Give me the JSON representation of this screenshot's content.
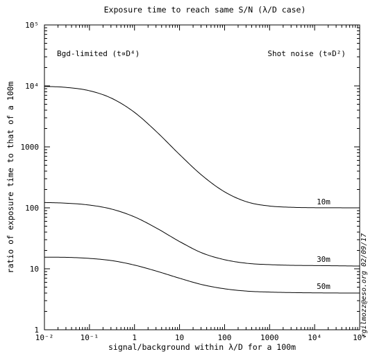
{
  "chart_data": {
    "type": "line",
    "title": "Exposure time to reach same S/N (λ/D case)",
    "xlabel": "signal/background within λ/D for a 100m",
    "ylabel": "ratio of exposure time to that of a 100m",
    "xscale": "log",
    "yscale": "log",
    "xlim": [
      0.01,
      100000
    ],
    "ylim": [
      1,
      100000
    ],
    "x_ticks": [
      0.01,
      0.1,
      1,
      10,
      100,
      1000,
      10000,
      100000
    ],
    "x_tick_labels": [
      "10⁻²",
      "10⁻¹",
      "1",
      "10",
      "100",
      "1000",
      "10⁴",
      "10⁵"
    ],
    "y_ticks": [
      1,
      10,
      100,
      1000,
      10000,
      100000
    ],
    "y_tick_labels": [
      "1",
      "10",
      "100",
      "1000",
      "10⁴",
      "10⁵"
    ],
    "grid": false,
    "x": [
      0.01,
      0.0316,
      0.1,
      0.316,
      1,
      3.16,
      10,
      31.6,
      100,
      316,
      1000,
      3160,
      10000,
      31600,
      100000
    ],
    "series": [
      {
        "name": "10m",
        "values": [
          9810,
          9420,
          8330,
          6230,
          3680,
          1740,
          750,
          340,
          183,
          125,
          107,
          102,
          100.5,
          100.2,
          100.1
        ]
      },
      {
        "name": "30m",
        "values": [
          122,
          119,
          111,
          95,
          71,
          46,
          28,
          18.2,
          14.1,
          12.3,
          11.7,
          11.4,
          11.3,
          11.2,
          11.1
        ]
      },
      {
        "name": "50m",
        "values": [
          15.5,
          15.4,
          14.8,
          13.6,
          11.5,
          9.1,
          7.0,
          5.5,
          4.7,
          4.3,
          4.15,
          4.07,
          4.03,
          4.01,
          4.0
        ]
      }
    ],
    "annotations": {
      "left": "Bgd-limited (t∝D⁴)",
      "right": "Shot noise (t∝D²)",
      "side": "rgilmozz@eso.org 02/09/17"
    }
  }
}
